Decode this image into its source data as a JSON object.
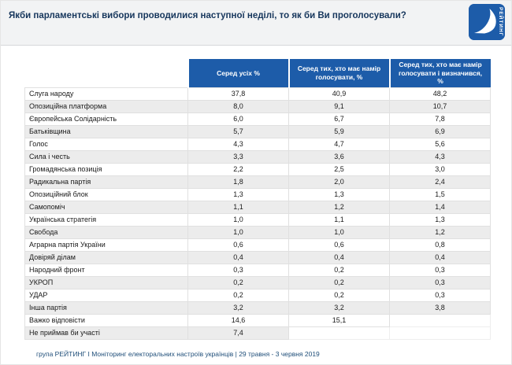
{
  "header": {
    "title": "Якби парламентські вибори проводилися наступної неділі, то як би Ви проголосували?",
    "logo_text": "РЕЙТИНГ"
  },
  "table": {
    "columns": [
      "Серед усіх %",
      "Серед тих, хто має намір голосувати, %",
      "Серед тих, хто має намір голосувати і визначився, %"
    ],
    "rows": [
      {
        "label": "Слуга народу",
        "values": [
          "37,8",
          "40,9",
          "48,2"
        ]
      },
      {
        "label": "Опозиційна платформа",
        "values": [
          "8,0",
          "9,1",
          "10,7"
        ]
      },
      {
        "label": "Європейська Солідарність",
        "values": [
          "6,0",
          "6,7",
          "7,8"
        ]
      },
      {
        "label": "Батьківщина",
        "values": [
          "5,7",
          "5,9",
          "6,9"
        ]
      },
      {
        "label": "Голос",
        "values": [
          "4,3",
          "4,7",
          "5,6"
        ]
      },
      {
        "label": "Сила і честь",
        "values": [
          "3,3",
          "3,6",
          "4,3"
        ]
      },
      {
        "label": "Громадянська позиція",
        "values": [
          "2,2",
          "2,5",
          "3,0"
        ]
      },
      {
        "label": "Радикальна партія",
        "values": [
          "1,8",
          "2,0",
          "2,4"
        ]
      },
      {
        "label": "Опозиційний блок",
        "values": [
          "1,3",
          "1,3",
          "1,5"
        ]
      },
      {
        "label": "Самопоміч",
        "values": [
          "1,1",
          "1,2",
          "1,4"
        ]
      },
      {
        "label": "Українська стратегія",
        "values": [
          "1,0",
          "1,1",
          "1,3"
        ]
      },
      {
        "label": "Свобода",
        "values": [
          "1,0",
          "1,0",
          "1,2"
        ]
      },
      {
        "label": "Аграрна партія України",
        "values": [
          "0,6",
          "0,6",
          "0,8"
        ]
      },
      {
        "label": "Довіряй ділам",
        "values": [
          "0,4",
          "0,4",
          "0,4"
        ]
      },
      {
        "label": "Народний фронт",
        "values": [
          "0,3",
          "0,2",
          "0,3"
        ]
      },
      {
        "label": "УКРОП",
        "values": [
          "0,2",
          "0,2",
          "0,3"
        ]
      },
      {
        "label": "УДАР",
        "values": [
          "0,2",
          "0,2",
          "0,3"
        ]
      },
      {
        "label": "Інша партія",
        "values": [
          "3,2",
          "3,2",
          "3,8"
        ]
      },
      {
        "label": "Важко відповісти",
        "values": [
          "14,6",
          "15,1",
          ""
        ]
      },
      {
        "label": "Не приймав би участі",
        "values": [
          "7,4",
          "",
          ""
        ]
      }
    ]
  },
  "footer": {
    "text": "група РЕЙТИНГ І Моніторинг електоральних настроїв українців  | 29 травня - 3 червня 2019"
  },
  "colors": {
    "header_blue": "#1d5ca9",
    "title_navy": "#16365c",
    "row_stripe": "#ececec",
    "footer_blue": "#1f4e79"
  },
  "chart_data": {
    "type": "table",
    "title": "Якби парламентські вибори проводилися наступної неділі, то як би Ви проголосували?",
    "categories": [
      "Слуга народу",
      "Опозиційна платформа",
      "Європейська Солідарність",
      "Батьківщина",
      "Голос",
      "Сила і честь",
      "Громадянська позиція",
      "Радикальна партія",
      "Опозиційний блок",
      "Самопоміч",
      "Українська стратегія",
      "Свобода",
      "Аграрна партія України",
      "Довіряй ділам",
      "Народний фронт",
      "УКРОП",
      "УДАР",
      "Інша партія",
      "Важко відповісти",
      "Не приймав би участі"
    ],
    "series": [
      {
        "name": "Серед усіх %",
        "values": [
          37.8,
          8.0,
          6.0,
          5.7,
          4.3,
          3.3,
          2.2,
          1.8,
          1.3,
          1.1,
          1.0,
          1.0,
          0.6,
          0.4,
          0.3,
          0.2,
          0.2,
          3.2,
          14.6,
          7.4
        ]
      },
      {
        "name": "Серед тих, хто має намір голосувати, %",
        "values": [
          40.9,
          9.1,
          6.7,
          5.9,
          4.7,
          3.6,
          2.5,
          2.0,
          1.3,
          1.2,
          1.1,
          1.0,
          0.6,
          0.4,
          0.2,
          0.2,
          0.2,
          3.2,
          15.1,
          null
        ]
      },
      {
        "name": "Серед тих, хто має намір голосувати і визначився, %",
        "values": [
          48.2,
          10.7,
          7.8,
          6.9,
          5.6,
          4.3,
          3.0,
          2.4,
          1.5,
          1.4,
          1.3,
          1.2,
          0.8,
          0.4,
          0.3,
          0.3,
          0.3,
          3.8,
          null,
          null
        ]
      }
    ],
    "source_note": "група РЕЙТИНГ І Моніторинг електоральних настроїв українців | 29 травня - 3 червня 2019",
    "legend_position": "table-header",
    "grid": true
  }
}
